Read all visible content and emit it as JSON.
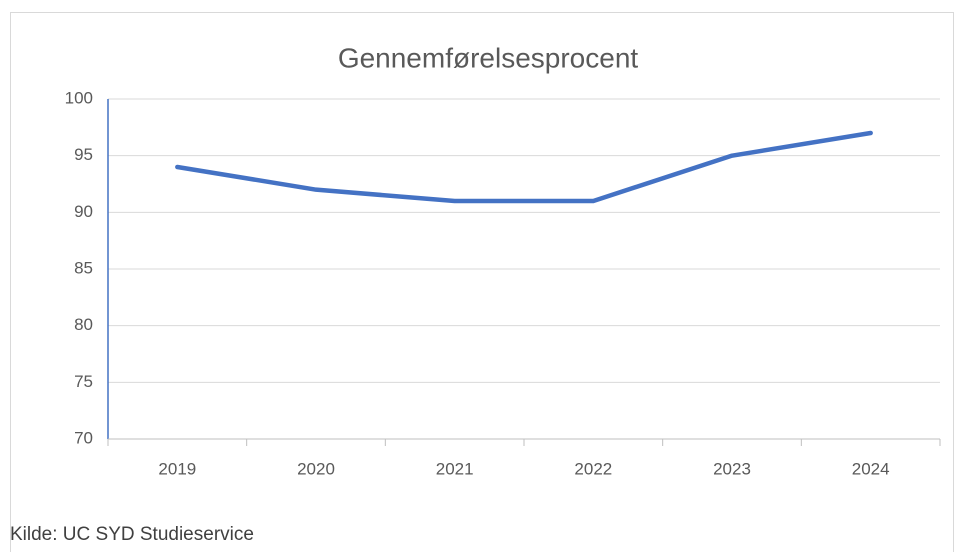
{
  "chart_data": {
    "type": "line",
    "title": "Gennemførelsesprocent",
    "categories": [
      "2019",
      "2020",
      "2021",
      "2022",
      "2023",
      "2024"
    ],
    "values": [
      94,
      92,
      91,
      91,
      95,
      97
    ],
    "color": "#4472c4",
    "ylim": [
      70,
      100
    ],
    "yticks": [
      70,
      75,
      80,
      85,
      90,
      95,
      100
    ],
    "grid": true,
    "source": "Kilde: UC SYD Studieservice"
  }
}
